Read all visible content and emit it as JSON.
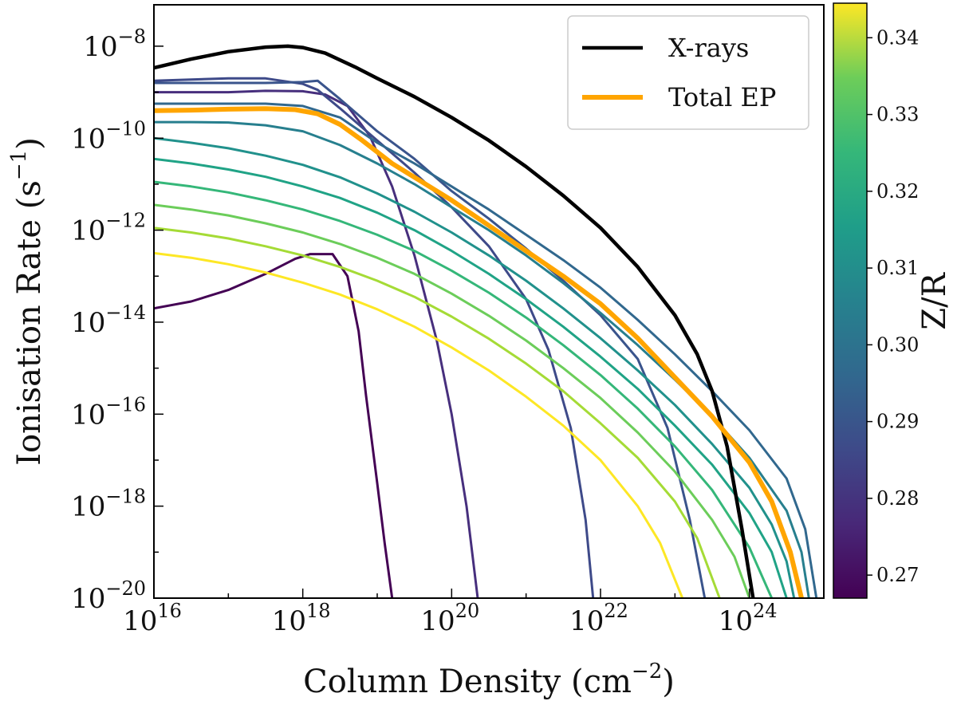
{
  "chart_data": {
    "type": "line",
    "title": "",
    "xlabel": "Column Density (cm−2)",
    "ylabel": "Ionisation Rate (s−1)",
    "xscale": "log",
    "yscale": "log",
    "xlim_log10": [
      16,
      25
    ],
    "ylim_log10": [
      -20,
      -7.1
    ],
    "x_ticks": [
      {
        "exp": 16,
        "base": "10",
        "sup": "16"
      },
      {
        "exp": 18,
        "base": "10",
        "sup": "18"
      },
      {
        "exp": 20,
        "base": "10",
        "sup": "20"
      },
      {
        "exp": 22,
        "base": "10",
        "sup": "22"
      },
      {
        "exp": 24,
        "base": "10",
        "sup": "24"
      }
    ],
    "y_ticks": [
      {
        "exp": -8,
        "base": "10",
        "sup": "−8"
      },
      {
        "exp": -10,
        "base": "10",
        "sup": "−10"
      },
      {
        "exp": -12,
        "base": "10",
        "sup": "−12"
      },
      {
        "exp": -14,
        "base": "10",
        "sup": "−14"
      },
      {
        "exp": -16,
        "base": "10",
        "sup": "−16"
      },
      {
        "exp": -18,
        "base": "10",
        "sup": "−18"
      },
      {
        "exp": -20,
        "base": "10",
        "sup": "−20"
      }
    ],
    "xlabel_parts": {
      "main": "Column Density (cm",
      "sup": "−2",
      "end": ")"
    },
    "ylabel_parts": {
      "main": "Ionisation Rate (s",
      "sup": "−1",
      "end": ")"
    },
    "legend": {
      "position": "upper-right",
      "entries": [
        {
          "label": "X-rays",
          "color": "#000000"
        },
        {
          "label": "Total EP",
          "color": "#FFA500"
        }
      ]
    },
    "colorbar": {
      "label": "Z/R",
      "colormap": "viridis",
      "range": [
        0.267,
        0.3445
      ],
      "ticks": [
        "0.27",
        "0.28",
        "0.29",
        "0.30",
        "0.31",
        "0.32",
        "0.33",
        "0.34"
      ],
      "tick_values": [
        0.27,
        0.28,
        0.29,
        0.3,
        0.31,
        0.32,
        0.33,
        0.34
      ]
    },
    "series": [
      {
        "name": "X-rays",
        "color": "#000000",
        "width": 4.5,
        "x": [
          16,
          16.5,
          17,
          17.5,
          17.8,
          18,
          18.3,
          18.7,
          19,
          19.5,
          20,
          20.5,
          21,
          21.5,
          22,
          22.5,
          23,
          23.3,
          23.5,
          23.7,
          23.9,
          24.05
        ],
        "y": [
          -8.47,
          -8.28,
          -8.12,
          -8.02,
          -8.0,
          -8.03,
          -8.15,
          -8.45,
          -8.7,
          -9.1,
          -9.55,
          -10.05,
          -10.62,
          -11.25,
          -11.95,
          -12.8,
          -13.85,
          -14.7,
          -15.5,
          -16.7,
          -18.5,
          -20
        ]
      },
      {
        "name": "Total EP",
        "color": "#FFA500",
        "width": 6,
        "x": [
          16,
          16.5,
          17,
          17.5,
          17.9,
          18.2,
          18.5,
          18.8,
          19.2,
          19.6,
          20,
          20.5,
          21,
          21.5,
          22,
          22.5,
          23,
          23.5,
          24,
          24.3,
          24.55,
          24.7
        ],
        "y": [
          -9.4,
          -9.39,
          -9.37,
          -9.36,
          -9.38,
          -9.47,
          -9.7,
          -10.05,
          -10.55,
          -10.95,
          -11.35,
          -11.9,
          -12.45,
          -13.0,
          -13.6,
          -14.35,
          -15.2,
          -16.05,
          -17.05,
          -17.9,
          -19.0,
          -20
        ]
      },
      {
        "name": "Z/R 0.2675",
        "color": "#440154",
        "width": 3,
        "x": [
          16,
          16.5,
          17,
          17.5,
          17.9,
          18.1,
          18.4,
          18.6,
          18.75,
          18.85,
          19.0,
          19.1,
          19.2
        ],
        "y": [
          -13.7,
          -13.55,
          -13.3,
          -12.95,
          -12.62,
          -12.52,
          -12.52,
          -13.0,
          -14.2,
          -15.6,
          -17.5,
          -18.8,
          -20
        ]
      },
      {
        "name": "Z/R 0.2735",
        "color": "#472F7D",
        "width": 3,
        "x": [
          16,
          17,
          17.5,
          18.0,
          18.3,
          18.6,
          18.9,
          19.2,
          19.5,
          19.8,
          20.0,
          20.2,
          20.35
        ],
        "y": [
          -9.0,
          -9.0,
          -8.97,
          -8.98,
          -9.05,
          -9.3,
          -9.95,
          -11.05,
          -12.55,
          -14.4,
          -16.0,
          -18.0,
          -20
        ]
      },
      {
        "name": "Z/R 0.2795",
        "color": "#3E4A89",
        "width": 3,
        "x": [
          16,
          17,
          17.5,
          18.0,
          18.2,
          18.5,
          19.0,
          19.5,
          20,
          20.5,
          21,
          21.3,
          21.6,
          21.8,
          21.9
        ],
        "y": [
          -8.75,
          -8.7,
          -8.7,
          -8.82,
          -8.95,
          -9.35,
          -10.05,
          -10.75,
          -11.5,
          -12.35,
          -13.5,
          -14.6,
          -16.3,
          -18.3,
          -20
        ]
      },
      {
        "name": "Z/R 0.2835",
        "color": "#3A548C",
        "width": 3,
        "x": [
          16,
          17,
          17.5,
          18.0,
          18.2,
          18.5,
          19,
          19.5,
          20,
          20.5,
          21,
          21.5,
          22,
          22.5,
          22.9,
          23.2,
          23.4
        ],
        "y": [
          -8.8,
          -8.8,
          -8.8,
          -8.78,
          -8.75,
          -9.15,
          -9.85,
          -10.45,
          -11.15,
          -11.75,
          -12.4,
          -13.1,
          -13.85,
          -14.8,
          -16.3,
          -18.3,
          -20
        ]
      },
      {
        "name": "Z/R 0.2905",
        "color": "#31688E",
        "width": 3,
        "x": [
          16,
          17,
          17.5,
          18.0,
          18.5,
          19,
          19.5,
          20,
          20.5,
          21,
          21.5,
          22,
          22.5,
          23,
          23.5,
          24,
          24.5,
          24.75,
          24.9
        ],
        "y": [
          -9.25,
          -9.25,
          -9.25,
          -9.3,
          -9.55,
          -10.1,
          -10.55,
          -11.05,
          -11.55,
          -12.1,
          -12.65,
          -13.25,
          -13.95,
          -14.7,
          -15.5,
          -16.35,
          -17.4,
          -18.5,
          -20
        ]
      },
      {
        "name": "Z/R 0.2985",
        "color": "#277F8E",
        "width": 3,
        "x": [
          16,
          16.5,
          17,
          17.5,
          18,
          18.5,
          19,
          19.5,
          20,
          20.5,
          21,
          21.5,
          22,
          22.5,
          23,
          23.5,
          24,
          24.5,
          24.7,
          24.8
        ],
        "y": [
          -9.65,
          -9.65,
          -9.66,
          -9.72,
          -9.85,
          -10.15,
          -10.55,
          -11.0,
          -11.5,
          -12.0,
          -12.55,
          -13.15,
          -13.8,
          -14.5,
          -15.25,
          -16.05,
          -16.95,
          -18.1,
          -19.0,
          -20
        ]
      },
      {
        "name": "Z/R 0.3055",
        "color": "#21918C",
        "width": 3,
        "x": [
          16,
          16.5,
          17,
          17.5,
          18,
          18.5,
          19,
          19.5,
          20,
          20.5,
          21,
          21.5,
          22,
          22.5,
          23,
          23.5,
          24,
          24.3,
          24.5,
          24.6
        ],
        "y": [
          -10.0,
          -10.1,
          -10.22,
          -10.38,
          -10.58,
          -10.85,
          -11.2,
          -11.6,
          -12.05,
          -12.55,
          -13.1,
          -13.7,
          -14.35,
          -15.05,
          -15.8,
          -16.65,
          -17.6,
          -18.4,
          -19.2,
          -20
        ]
      },
      {
        "name": "Z/R 0.3125",
        "color": "#20A386",
        "width": 3,
        "x": [
          16,
          16.5,
          17,
          17.5,
          18,
          18.5,
          19,
          19.5,
          20,
          20.5,
          21,
          21.5,
          22,
          22.5,
          23,
          23.5,
          24,
          24.3,
          24.5
        ],
        "y": [
          -10.45,
          -10.55,
          -10.68,
          -10.84,
          -11.05,
          -11.3,
          -11.62,
          -12.0,
          -12.45,
          -12.95,
          -13.5,
          -14.1,
          -14.75,
          -15.45,
          -16.25,
          -17.1,
          -18.15,
          -19.0,
          -20
        ]
      },
      {
        "name": "Z/R 0.3195",
        "color": "#35B779",
        "width": 3,
        "x": [
          16,
          16.5,
          17,
          17.5,
          18,
          18.5,
          19,
          19.5,
          20,
          20.5,
          21,
          21.5,
          22,
          22.5,
          23,
          23.5,
          24,
          24.3
        ],
        "y": [
          -10.95,
          -11.05,
          -11.18,
          -11.35,
          -11.55,
          -11.8,
          -12.1,
          -12.45,
          -12.88,
          -13.36,
          -13.9,
          -14.5,
          -15.15,
          -15.88,
          -16.7,
          -17.65,
          -18.9,
          -20
        ]
      },
      {
        "name": "Z/R 0.3265",
        "color": "#6CCD5A",
        "width": 3,
        "x": [
          16,
          16.5,
          17,
          17.5,
          18,
          18.5,
          19,
          19.5,
          20,
          20.5,
          21,
          21.5,
          22,
          22.5,
          23,
          23.5,
          23.8,
          24.0
        ],
        "y": [
          -11.45,
          -11.55,
          -11.68,
          -11.85,
          -12.05,
          -12.3,
          -12.6,
          -12.95,
          -13.38,
          -13.86,
          -14.4,
          -15.0,
          -15.65,
          -16.4,
          -17.25,
          -18.3,
          -19.1,
          -20
        ]
      },
      {
        "name": "Z/R 0.3335",
        "color": "#A5DB36",
        "width": 3,
        "x": [
          16,
          16.5,
          17,
          17.5,
          18,
          18.5,
          19,
          19.5,
          20,
          20.5,
          21,
          21.5,
          22,
          22.5,
          23,
          23.3,
          23.6
        ],
        "y": [
          -11.95,
          -12.05,
          -12.18,
          -12.35,
          -12.55,
          -12.8,
          -13.1,
          -13.45,
          -13.88,
          -14.36,
          -14.9,
          -15.5,
          -16.2,
          -16.95,
          -17.9,
          -18.7,
          -20
        ]
      },
      {
        "name": "Z/R 0.3435",
        "color": "#FDE725",
        "width": 3,
        "x": [
          16,
          16.5,
          17,
          17.5,
          18,
          18.5,
          19,
          19.5,
          20,
          20.5,
          21,
          21.5,
          22,
          22.5,
          22.8,
          23.1
        ],
        "y": [
          -12.5,
          -12.6,
          -12.74,
          -12.92,
          -13.14,
          -13.4,
          -13.72,
          -14.1,
          -14.55,
          -15.05,
          -15.62,
          -16.25,
          -17.0,
          -18.0,
          -18.8,
          -20
        ]
      }
    ]
  }
}
